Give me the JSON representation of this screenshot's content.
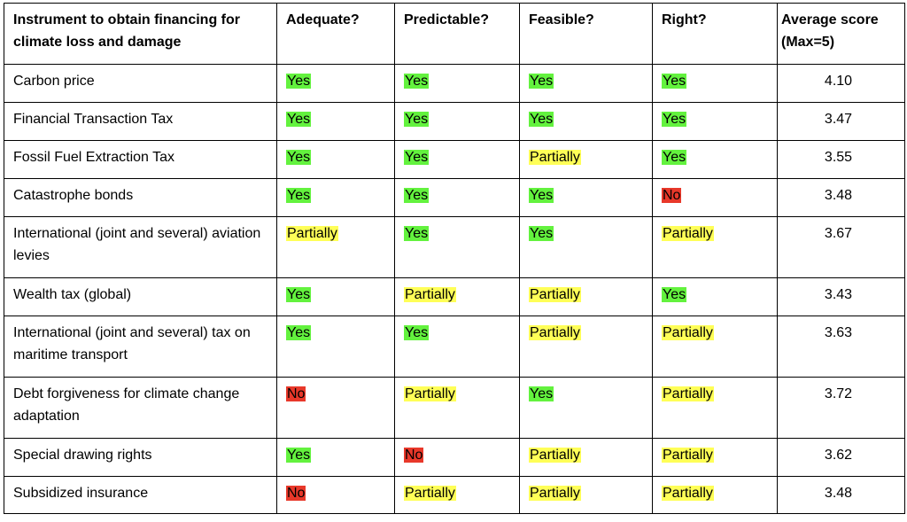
{
  "table": {
    "headers": [
      "Instrument to obtain financing for climate loss and damage",
      "Adequate?",
      "Predictable?",
      "Feasible?",
      "Right?",
      "Average score (Max=5)"
    ],
    "rows": [
      {
        "instrument": "Carbon price",
        "adequate": "Yes",
        "predictable": "Yes",
        "feasible": "Yes",
        "right": "Yes",
        "score": "4.10"
      },
      {
        "instrument": "Financial Transaction Tax",
        "adequate": "Yes",
        "predictable": "Yes",
        "feasible": "Yes",
        "right": "Yes",
        "score": "3.47"
      },
      {
        "instrument": "Fossil Fuel Extraction Tax",
        "adequate": "Yes",
        "predictable": "Yes",
        "feasible": "Partially",
        "right": "Yes",
        "score": "3.55"
      },
      {
        "instrument": "Catastrophe bonds",
        "adequate": "Yes",
        "predictable": "Yes",
        "feasible": "Yes",
        "right": "No",
        "score": "3.48"
      },
      {
        "instrument": "International (joint and several) aviation levies",
        "adequate": "Partially",
        "predictable": "Yes",
        "feasible": "Yes",
        "right": "Partially",
        "score": "3.67"
      },
      {
        "instrument": "Wealth tax (global)",
        "adequate": "Yes",
        "predictable": "Partially",
        "feasible": "Partially",
        "right": "Yes",
        "score": "3.43"
      },
      {
        "instrument": "International (joint and several) tax on maritime transport",
        "adequate": "Yes",
        "predictable": "Yes",
        "feasible": "Partially",
        "right": "Partially",
        "score": "3.63"
      },
      {
        "instrument": "Debt forgiveness for climate change adaptation",
        "adequate": "No",
        "predictable": "Partially",
        "feasible": "Yes",
        "right": "Partially",
        "score": "3.72"
      },
      {
        "instrument": "Special drawing rights",
        "adequate": "Yes",
        "predictable": "No",
        "feasible": "Partially",
        "right": "Partially",
        "score": "3.62"
      },
      {
        "instrument": "Subsidized insurance",
        "adequate": "No",
        "predictable": "Partially",
        "feasible": "Partially",
        "right": "Partially",
        "score": "3.48"
      }
    ]
  },
  "colors": {
    "yes": "#63f23e",
    "partially": "#ffff57",
    "no": "#e8382a"
  }
}
